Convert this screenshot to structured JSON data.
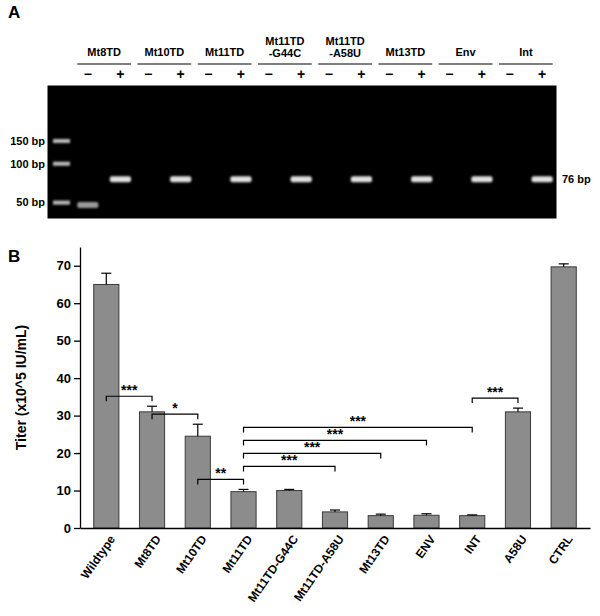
{
  "chart_data": [
    {
      "type": "gel",
      "title": "A",
      "categories": [
        "Mt8TD",
        "Mt10TD",
        "Mt11TD",
        "Mt11TD\n-G44C",
        "Mt11TD\n-A58U",
        "Mt13TD",
        "Env",
        "Int"
      ],
      "series": [
        {
          "name": "−",
          "color": "#9a9a9a",
          "values": [
            48,
            null,
            null,
            null,
            null,
            null,
            null,
            null
          ]
        },
        {
          "name": "+",
          "color": "#e0e0e0",
          "values": [
            76,
            76,
            76,
            76,
            76,
            76,
            76,
            76
          ]
        }
      ],
      "log": "y",
      "ylim": [
        38,
        400
      ],
      "yticks": [
        {
          "value": 150,
          "label": "150 bp"
        },
        {
          "value": 100,
          "label": "100 bp"
        },
        {
          "value": 50,
          "label": "50 bp"
        }
      ],
      "annotations": [
        {
          "text": "76 bp",
          "value": 76
        }
      ]
    },
    {
      "type": "bar",
      "title": "B",
      "categories": [
        "Wildtype",
        "Mt8TD",
        "Mt10TD",
        "Mt11TD",
        "Mt11TD-G44C",
        "Mt11TD-A58U",
        "Mt13TD",
        "ENV",
        "INT",
        "A58U",
        "CTRL"
      ],
      "values": [
        65,
        31,
        24.5,
        9.7,
        10,
        4.3,
        3.3,
        3.4,
        3.3,
        31,
        69.7
      ],
      "errors": [
        3,
        1.5,
        3.2,
        0.6,
        0.3,
        0.5,
        0.4,
        0.4,
        0.2,
        1,
        0.8
      ],
      "color": "#8c8c8c",
      "ylabel": "Titer (x10^5 IU/mL)",
      "ylim": [
        0,
        75
      ],
      "yticks": [
        0,
        10,
        20,
        30,
        40,
        50,
        60,
        70
      ],
      "comparisons": [
        {
          "from": "Wildtype",
          "to": "Mt8TD",
          "label": "***"
        },
        {
          "from": "Mt8TD",
          "to": "Mt10TD",
          "label": "*"
        },
        {
          "from": "Mt10TD",
          "to": "Mt11TD",
          "label": "**"
        },
        {
          "from": "Mt11TD",
          "to": "Mt11TD-A58U",
          "label": "***"
        },
        {
          "from": "Mt11TD",
          "to": "Mt13TD",
          "label": "***"
        },
        {
          "from": "Mt11TD",
          "to": "ENV",
          "label": "***"
        },
        {
          "from": "Mt11TD",
          "to": "INT",
          "label": "***"
        },
        {
          "from": "INT",
          "to": "A58U",
          "label": "***"
        }
      ]
    }
  ]
}
